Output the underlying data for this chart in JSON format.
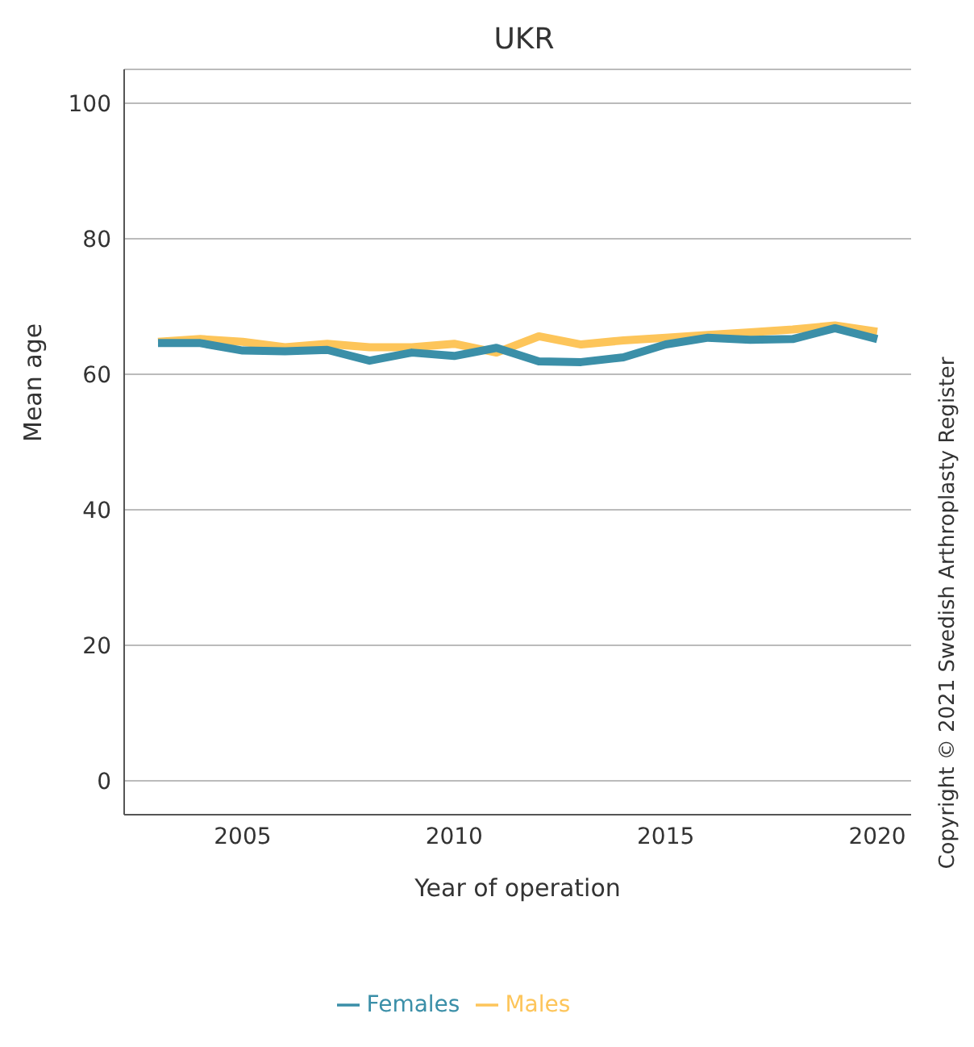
{
  "chart_data": {
    "type": "line",
    "title": "UKR",
    "xlabel": "Year of operation",
    "ylabel": "Mean age",
    "annotations": [
      "Copyright © 2021 Swedish Arthroplasty Register"
    ],
    "x": [
      2003,
      2004,
      2005,
      2006,
      2007,
      2008,
      2009,
      2010,
      2011,
      2012,
      2013,
      2014,
      2015,
      2016,
      2017,
      2018,
      2019,
      2020
    ],
    "series": [
      {
        "name": "Males",
        "color": "#fdc55a",
        "values": [
          64.8,
          65.2,
          64.8,
          64,
          64.5,
          64,
          64,
          64.5,
          63.2,
          65.6,
          64.4,
          65,
          65.4,
          65.8,
          66.2,
          66.6,
          67.2,
          66.3
        ]
      },
      {
        "name": "Females",
        "color": "#3b8fa8",
        "values": [
          64.6,
          64.6,
          63.5,
          63.4,
          63.6,
          62,
          63.2,
          62.7,
          63.9,
          61.9,
          61.8,
          62.5,
          64.4,
          65.4,
          65.1,
          65.2,
          66.8,
          65.2
        ]
      }
    ],
    "xlim": [
      2002.2,
      2020.8
    ],
    "xticks": [
      2005,
      2010,
      2015,
      2020
    ],
    "ylim": [
      -5,
      105
    ],
    "yticks": [
      0,
      20,
      40,
      60,
      80,
      100
    ],
    "grid": "y",
    "legend": "bottom",
    "marker": "none",
    "line_style": "solid"
  }
}
